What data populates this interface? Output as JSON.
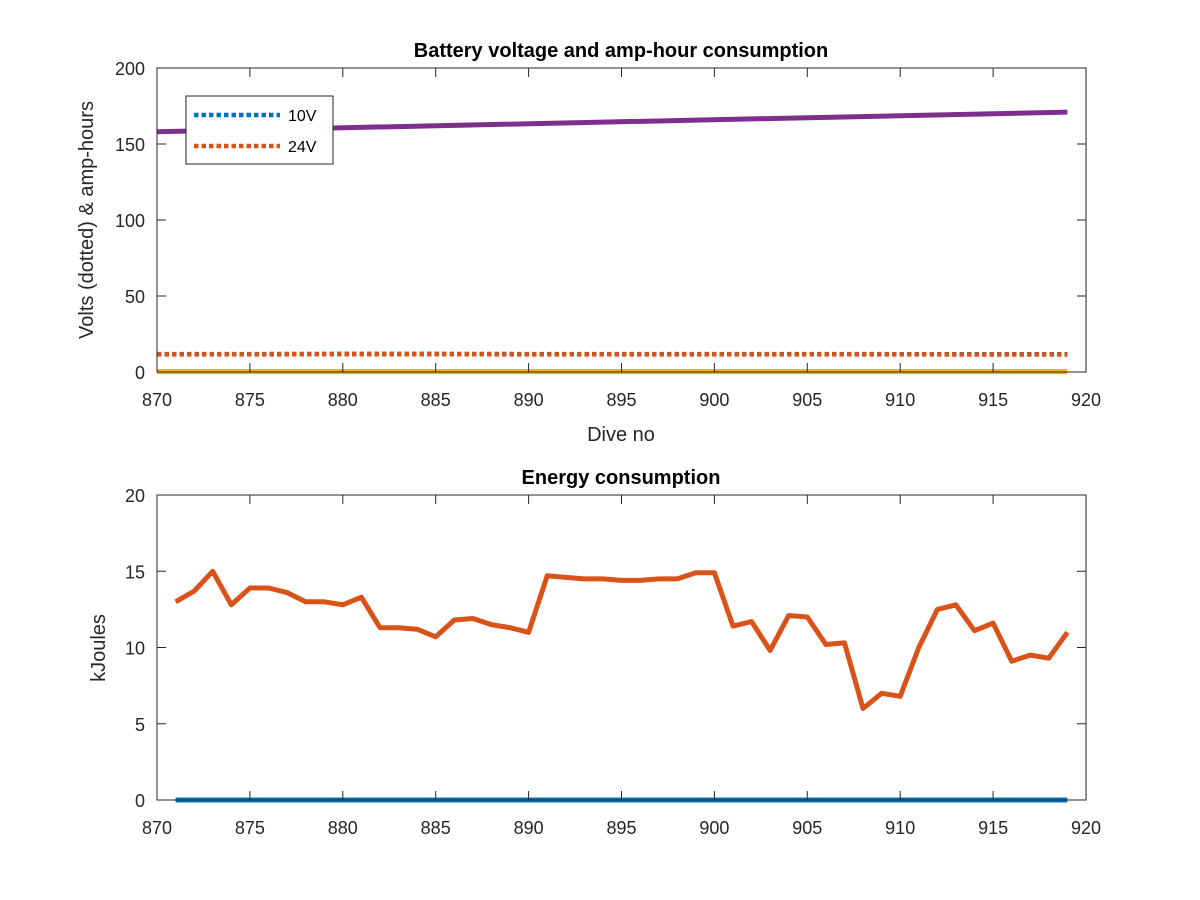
{
  "chart_data": [
    {
      "type": "line",
      "title": "Battery voltage and amp-hour consumption",
      "xlabel": "Dive no",
      "ylabel": "Volts (dotted) & amp-hours",
      "xlim": [
        870,
        920
      ],
      "ylim": [
        0,
        200
      ],
      "xticks": [
        870,
        875,
        880,
        885,
        890,
        895,
        900,
        905,
        910,
        915,
        920
      ],
      "yticks": [
        0,
        50,
        100,
        150,
        200
      ],
      "legend": {
        "placement": "top-left",
        "entries": [
          "10V",
          "24V"
        ]
      },
      "grid": false,
      "series": [
        {
          "name": "10V",
          "style": "dotted",
          "color": "#0072BD",
          "x": [
            870,
            875,
            880,
            885,
            890,
            895,
            900,
            905,
            910,
            915,
            919
          ],
          "y": [
            11.8,
            11.8,
            11.9,
            11.9,
            11.8,
            11.8,
            11.8,
            11.8,
            11.7,
            11.7,
            11.7
          ]
        },
        {
          "name": "24V",
          "style": "dotted",
          "color": "#D95319",
          "x": [
            870,
            875,
            880,
            885,
            890,
            895,
            900,
            905,
            910,
            915,
            919
          ],
          "y": [
            11.6,
            11.6,
            11.7,
            11.7,
            11.6,
            11.6,
            11.6,
            11.6,
            11.6,
            11.5,
            11.5
          ]
        },
        {
          "style": "solid",
          "color": "#EDB120",
          "x": [
            870,
            919
          ],
          "y": [
            0.3,
            0.3
          ]
        },
        {
          "style": "solid",
          "color": "#7E2F8E",
          "x": [
            870,
            919
          ],
          "y": [
            158,
            171
          ]
        }
      ]
    },
    {
      "type": "line",
      "title": "Energy consumption",
      "xlabel": "",
      "ylabel": "kJoules",
      "xlim": [
        870,
        920
      ],
      "ylim": [
        0,
        20
      ],
      "xticks": [
        870,
        875,
        880,
        885,
        890,
        895,
        900,
        905,
        910,
        915,
        920
      ],
      "yticks": [
        0,
        5,
        10,
        15,
        20
      ],
      "grid": false,
      "series": [
        {
          "style": "solid",
          "color": "#0072BD",
          "x": [
            871,
            919
          ],
          "y": [
            0,
            0
          ]
        },
        {
          "style": "solid",
          "color": "#D95319",
          "x": [
            871,
            872,
            873,
            874,
            875,
            876,
            877,
            878,
            879,
            880,
            881,
            882,
            883,
            884,
            885,
            886,
            887,
            888,
            889,
            890,
            891,
            892,
            893,
            894,
            895,
            896,
            897,
            898,
            899,
            900,
            901,
            902,
            903,
            904,
            905,
            906,
            907,
            908,
            909,
            910,
            911,
            912,
            913,
            914,
            915,
            916,
            917,
            918,
            919
          ],
          "y": [
            13.0,
            13.7,
            15.0,
            12.8,
            13.9,
            13.9,
            13.6,
            13.0,
            13.0,
            12.8,
            13.3,
            11.3,
            11.3,
            11.2,
            10.7,
            11.8,
            11.9,
            11.5,
            11.3,
            11.0,
            14.7,
            14.6,
            14.5,
            14.5,
            14.4,
            14.4,
            14.5,
            14.5,
            14.9,
            14.9,
            11.4,
            11.7,
            9.8,
            12.1,
            12.0,
            10.2,
            10.3,
            6.0,
            7.0,
            6.8,
            10.0,
            12.5,
            12.8,
            11.1,
            11.6,
            9.1,
            9.5,
            9.3,
            11.0
          ]
        }
      ]
    }
  ]
}
